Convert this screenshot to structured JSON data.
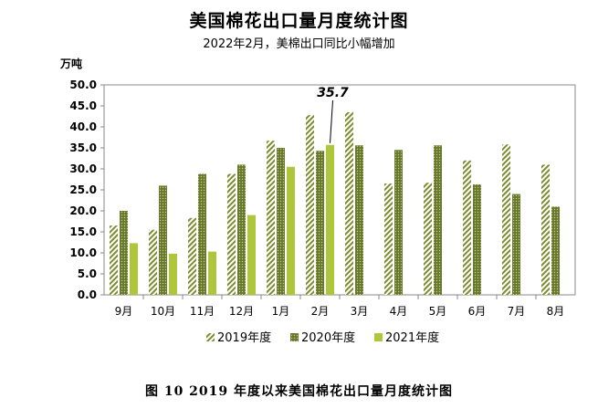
{
  "header": {
    "title": "美国棉花出口量月度统计图",
    "subtitle": "2022年2月，美棉出口同比小幅增加"
  },
  "caption": "图 10   2019 年度以来美国棉花出口量月度统计图",
  "colors": {
    "s2019": "#7d8b2f",
    "s2020": "#66772a",
    "s2021": "#aec73a",
    "axis": "#888888",
    "grid": "#d9d9d9"
  },
  "chart_data": {
    "type": "bar",
    "title": "美国棉花出口量月度统计图",
    "subtitle": "2022年2月，美棉出口同比小幅增加",
    "ylabel": "万吨",
    "ylim": [
      0,
      50
    ],
    "yticks": [
      "0.0",
      "5.0",
      "10.0",
      "15.0",
      "20.0",
      "25.0",
      "30.0",
      "35.0",
      "40.0",
      "45.0",
      "50.0"
    ],
    "categories": [
      "9月",
      "10月",
      "11月",
      "12月",
      "1月",
      "2月",
      "3月",
      "4月",
      "5月",
      "6月",
      "7月",
      "8月"
    ],
    "series": [
      {
        "name": "2019年度",
        "pattern": "hatch",
        "values": [
          16.5,
          15.5,
          18.3,
          28.8,
          36.7,
          42.8,
          43.5,
          26.5,
          26.7,
          32.0,
          35.8,
          31.0
        ]
      },
      {
        "name": "2020年度",
        "pattern": "dots",
        "values": [
          20.0,
          26.0,
          28.8,
          31.0,
          35.0,
          34.3,
          35.6,
          34.5,
          35.6,
          26.3,
          24.0,
          21.0
        ]
      },
      {
        "name": "2021年度",
        "pattern": "solid",
        "values": [
          12.3,
          9.8,
          10.3,
          19.0,
          30.5,
          35.7,
          null,
          null,
          null,
          null,
          null,
          null
        ]
      }
    ],
    "annotation": {
      "text": "35.7",
      "category": "2月",
      "series": "2021年度"
    },
    "legend_position": "bottom",
    "grid": false
  }
}
